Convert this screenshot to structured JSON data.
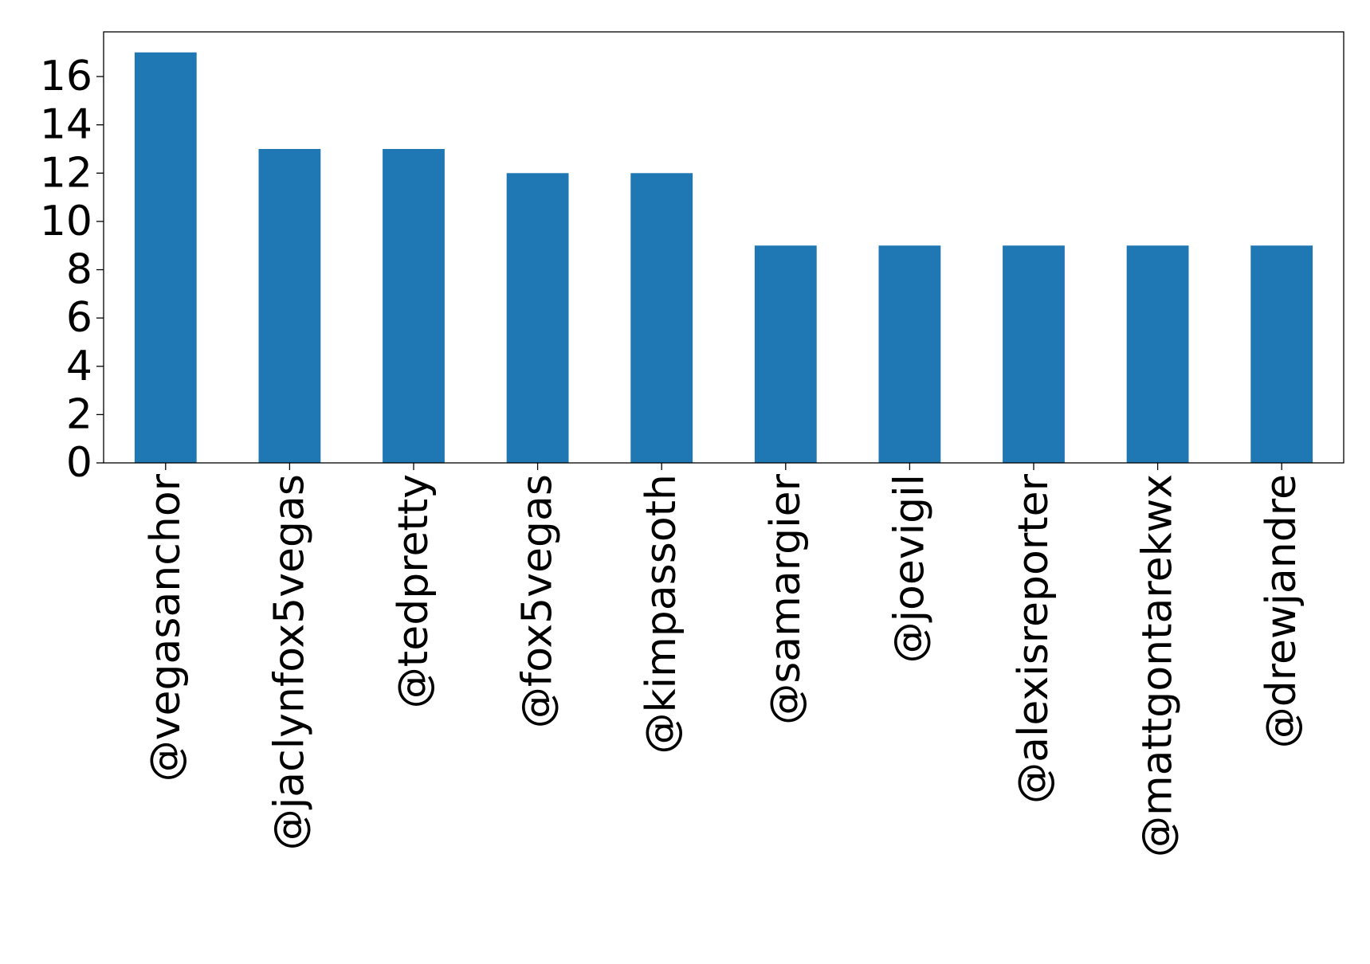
{
  "chart_data": {
    "type": "bar",
    "title": "",
    "xlabel": "",
    "ylabel": "",
    "categories": [
      "@vegasanchor",
      "@jaclynfox5vegas",
      "@tedpretty",
      "@fox5vegas",
      "@kimpassoth",
      "@samargier",
      "@joevigil",
      "@alexisreporter",
      "@mattgontarekwx",
      "@drewjandre"
    ],
    "values": [
      17,
      13,
      13,
      12,
      12,
      9,
      9,
      9,
      9,
      9
    ],
    "yticks": [
      0,
      2,
      4,
      6,
      8,
      10,
      12,
      14,
      16
    ],
    "ylim": [
      0,
      17.85
    ],
    "bar_color": "#1f77b4",
    "grid": false,
    "legend": "none"
  }
}
